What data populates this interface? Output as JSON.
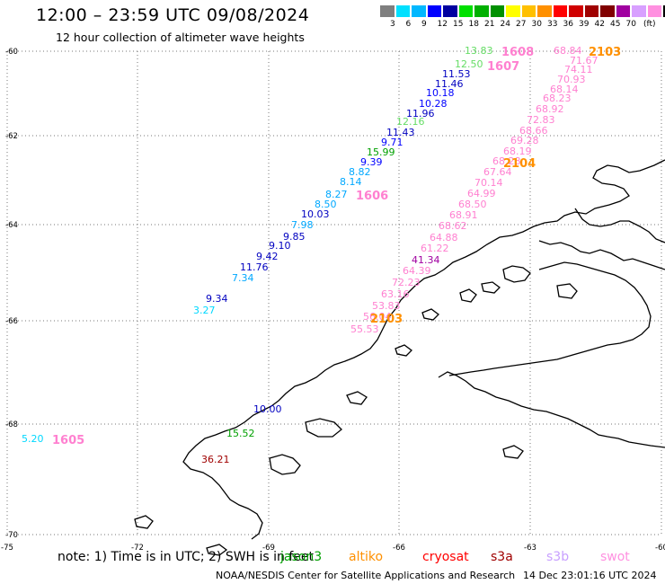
{
  "header": {
    "title": "12:00 – 23:59 UTC 09/08/2024",
    "subtitle": "12 hour collection of altimeter wave heights"
  },
  "legend": {
    "colors": [
      "#7f7f7f",
      "#00e0ff",
      "#00b8ff",
      "#0000ff",
      "#0000a0",
      "#00e000",
      "#00b000",
      "#009000",
      "#ffff00",
      "#ffc000",
      "#ff9000",
      "#ff0000",
      "#d00000",
      "#a00000",
      "#800000",
      "#a000a0",
      "#d8a0ff",
      "#ff90e0",
      "#000000"
    ],
    "labels": [
      "3",
      "6",
      "9",
      "12",
      "15",
      "18",
      "21",
      "24",
      "27",
      "30",
      "33",
      "36",
      "39",
      "42",
      "45",
      "70",
      "(ft)"
    ]
  },
  "map": {
    "lat_labels": [
      "-60",
      "-62",
      "-64",
      "-66",
      "-68",
      "-70"
    ],
    "lon_labels": [
      "-75",
      "-72",
      "-69",
      "-66",
      "-63",
      "-60"
    ]
  },
  "tracks": [
    {
      "label": "1608",
      "color": "#ff80d0",
      "bold": true
    },
    {
      "label": "1607",
      "color": "#ff80d0",
      "bold": true
    },
    {
      "label": "2103",
      "color": "#ff9000",
      "bold": true
    },
    {
      "label": "2104",
      "color": "#ff9000",
      "bold": true
    },
    {
      "label": "1606",
      "color": "#ff80d0",
      "bold": true
    },
    {
      "label": "2103",
      "color": "#ff9000",
      "bold": true
    },
    {
      "label": "1605",
      "color": "#ff80d0",
      "bold": true
    }
  ],
  "points": [
    {
      "v": "13.83",
      "c": "#66dd66"
    },
    {
      "v": "12.50",
      "c": "#66dd66"
    },
    {
      "v": "11.53",
      "c": "#0000c0"
    },
    {
      "v": "11.46",
      "c": "#0000c0"
    },
    {
      "v": "10.18",
      "c": "#0000ff"
    },
    {
      "v": "10.28",
      "c": "#0000ff"
    },
    {
      "v": "11.96",
      "c": "#0000c0"
    },
    {
      "v": "12.16",
      "c": "#66dd66"
    },
    {
      "v": "11.43",
      "c": "#0000c0"
    },
    {
      "v": "9.71",
      "c": "#0000ff"
    },
    {
      "v": "15.99",
      "c": "#00a000"
    },
    {
      "v": "9.39",
      "c": "#0000ff"
    },
    {
      "v": "8.82",
      "c": "#00a8ff"
    },
    {
      "v": "8.14",
      "c": "#00a8ff"
    },
    {
      "v": "8.27",
      "c": "#00a8ff"
    },
    {
      "v": "8.50",
      "c": "#00a8ff"
    },
    {
      "v": "10.03",
      "c": "#0000c0"
    },
    {
      "v": "7.98",
      "c": "#00a8ff"
    },
    {
      "v": "9.85",
      "c": "#0000c0"
    },
    {
      "v": "9.10",
      "c": "#0000c0"
    },
    {
      "v": "9.42",
      "c": "#0000c0"
    },
    {
      "v": "11.76",
      "c": "#0000c0"
    },
    {
      "v": "7.34",
      "c": "#00a8ff"
    },
    {
      "v": "9.34",
      "c": "#0000c0"
    },
    {
      "v": "3.27",
      "c": "#00d8ff"
    },
    {
      "v": "68.84",
      "c": "#ff80d0"
    },
    {
      "v": "71.67",
      "c": "#ff80d0"
    },
    {
      "v": "74.11",
      "c": "#ff80d0"
    },
    {
      "v": "70.93",
      "c": "#ff80d0"
    },
    {
      "v": "68.14",
      "c": "#ff80d0"
    },
    {
      "v": "68.23",
      "c": "#ff80d0"
    },
    {
      "v": "68.92",
      "c": "#ff80d0"
    },
    {
      "v": "72.83",
      "c": "#ff80d0"
    },
    {
      "v": "68.66",
      "c": "#ff80d0"
    },
    {
      "v": "69.28",
      "c": "#ff80d0"
    },
    {
      "v": "68.19",
      "c": "#ff80d0"
    },
    {
      "v": "68.28",
      "c": "#ff80d0"
    },
    {
      "v": "67.64",
      "c": "#ff80d0"
    },
    {
      "v": "70.14",
      "c": "#ff80d0"
    },
    {
      "v": "64.99",
      "c": "#ff80d0"
    },
    {
      "v": "68.50",
      "c": "#ff80d0"
    },
    {
      "v": "68.91",
      "c": "#ff80d0"
    },
    {
      "v": "68.62",
      "c": "#ff80d0"
    },
    {
      "v": "64.88",
      "c": "#ff80d0"
    },
    {
      "v": "61.22",
      "c": "#ff80d0"
    },
    {
      "v": "41.34",
      "c": "#a000a0"
    },
    {
      "v": "64.39",
      "c": "#ff80d0"
    },
    {
      "v": "72.23",
      "c": "#ff80d0"
    },
    {
      "v": "63.16",
      "c": "#ff80d0"
    },
    {
      "v": "53.83",
      "c": "#ff80d0"
    },
    {
      "v": "56.04",
      "c": "#ff80d0"
    },
    {
      "v": "55.53",
      "c": "#ff80d0"
    },
    {
      "v": "10.00",
      "c": "#0000c0"
    },
    {
      "v": "15.52",
      "c": "#00a000"
    },
    {
      "v": "36.21",
      "c": "#a00000"
    },
    {
      "v": "5.20",
      "c": "#00d8ff"
    }
  ],
  "footer": {
    "note": "note:  1) Time is in UTC;  2) SWH is in feet",
    "satellites": [
      {
        "name": "jason3",
        "color": "#00a000"
      },
      {
        "name": "altiko",
        "color": "#ff9000"
      },
      {
        "name": "cryosat",
        "color": "#ff0000"
      },
      {
        "name": "s3a",
        "color": "#a00000"
      },
      {
        "name": "s3b",
        "color": "#c8a0ff"
      },
      {
        "name": "swot",
        "color": "#ff90e0"
      }
    ],
    "credit": "NOAA/NESDIS Center for Satellite Applications and Research",
    "generated": "14 Dec 23:01:16 UTC 2024"
  }
}
